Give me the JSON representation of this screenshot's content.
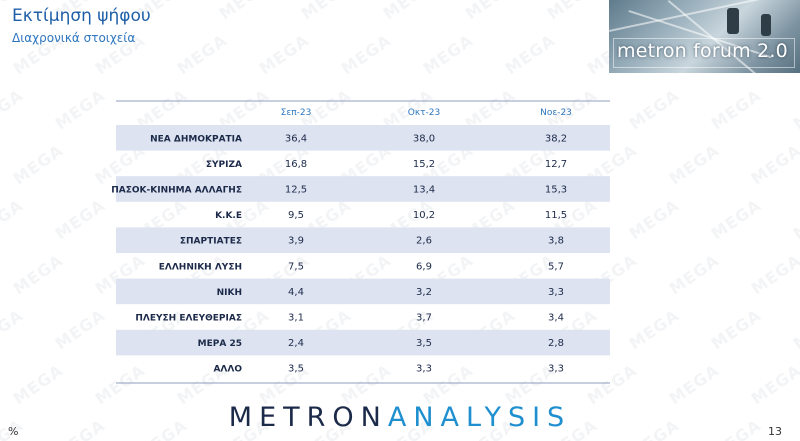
{
  "header": {
    "title": "Εκτίμηση ψήφου",
    "subtitle": "Διαχρονικά στοιχεία",
    "forum_logo": "metron forum 2.0"
  },
  "watermark_text": "MEGA",
  "chart_data": {
    "type": "table",
    "columns": [
      "Σεπ-23",
      "Οκτ-23",
      "Νοε-23"
    ],
    "rows": [
      {
        "label": "ΝΕΑ ΔΗΜΟΚΡΑΤΙΑ",
        "values": [
          "36,4",
          "38,0",
          "38,2"
        ]
      },
      {
        "label": "ΣΥΡΙΖΑ",
        "values": [
          "16,8",
          "15,2",
          "12,7"
        ]
      },
      {
        "label": "ΠΑΣΟΚ-ΚΙΝΗΜΑ ΑΛΛΑΓΗΣ",
        "values": [
          "12,5",
          "13,4",
          "15,3"
        ]
      },
      {
        "label": "Κ.Κ.Ε",
        "values": [
          "9,5",
          "10,2",
          "11,5"
        ]
      },
      {
        "label": "ΣΠΑΡΤΙΑΤΕΣ",
        "values": [
          "3,9",
          "2,6",
          "3,8"
        ]
      },
      {
        "label": "ΕΛΛΗΝΙΚΗ ΛΥΣΗ",
        "values": [
          "7,5",
          "6,9",
          "5,7"
        ]
      },
      {
        "label": "ΝΙΚΗ",
        "values": [
          "4,4",
          "3,2",
          "3,3"
        ]
      },
      {
        "label": "ΠΛΕΥΣΗ ΕΛΕΥΘΕΡΙΑΣ",
        "values": [
          "3,1",
          "3,7",
          "3,4"
        ]
      },
      {
        "label": "ΜΕΡΑ 25",
        "values": [
          "2,4",
          "3,5",
          "2,8"
        ]
      },
      {
        "label": "ΑΛΛΟ",
        "values": [
          "3,5",
          "3,3",
          "3,3"
        ]
      }
    ],
    "unit": "%"
  },
  "footer": {
    "logo_bold": "METRON",
    "logo_thin": "ANALYSIS",
    "page_number": "13"
  },
  "colors": {
    "band": "#dde3f0",
    "rule": "#8f9dbf",
    "title": "#1f5fa8",
    "header_text": "#2e77c0"
  }
}
